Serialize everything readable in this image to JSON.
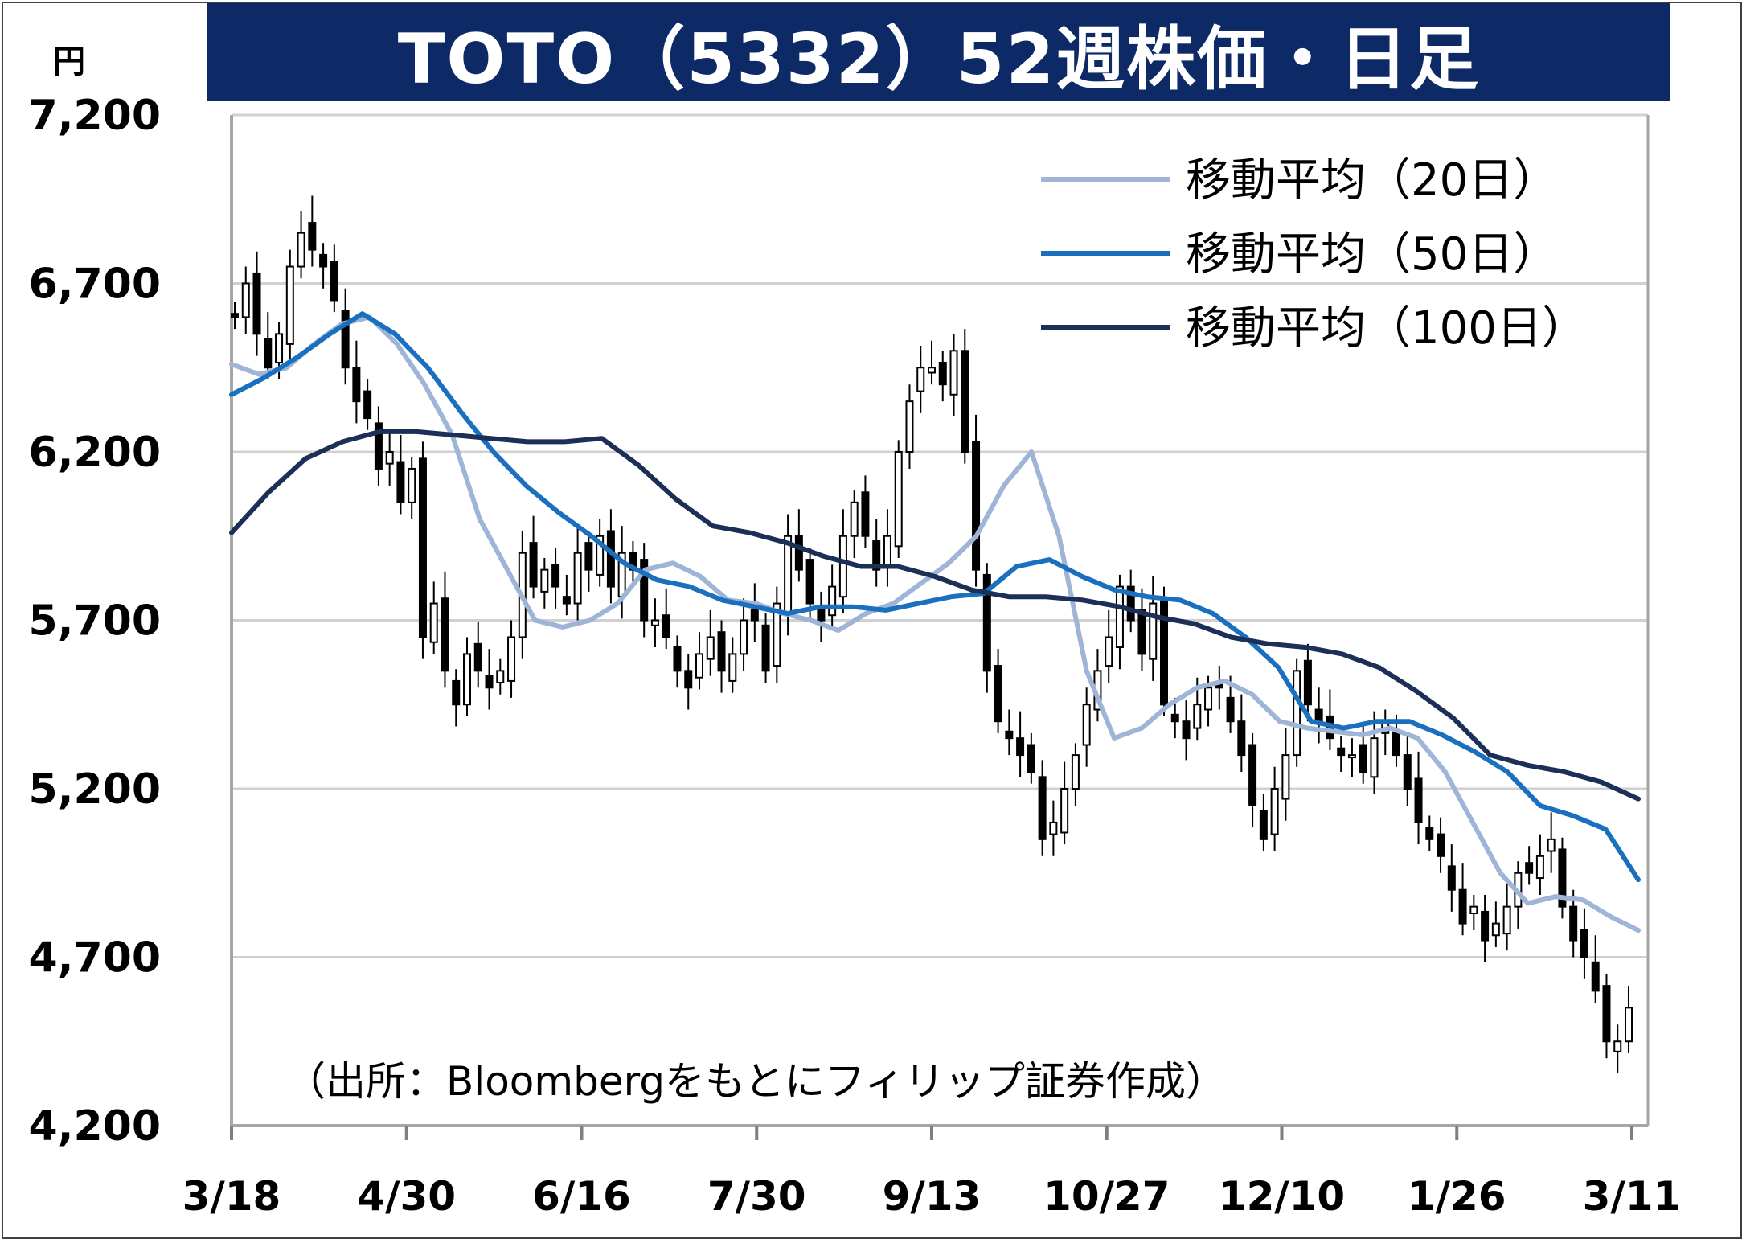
{
  "chart_data": {
    "type": "candlestick",
    "title": "TOTO（5332）52週株価・日足",
    "unit": "円",
    "ylim": [
      4200,
      7200
    ],
    "y_ticks": [
      "7,200",
      "6,700",
      "6,200",
      "5,700",
      "5,200",
      "4,700",
      "4,200"
    ],
    "y_tick_values": [
      7200,
      6700,
      6200,
      5700,
      5200,
      4700,
      4200
    ],
    "x_ticks": [
      "3/18",
      "4/30",
      "6/16",
      "7/30",
      "9/13",
      "10/27",
      "12/10",
      "1/26",
      "3/11"
    ],
    "grid": true,
    "legend_position": "top-right",
    "source_note": "（出所：Bloombergをもとにフィリップ証券作成）",
    "candles_approx_close": [
      6600,
      6700,
      6550,
      6450,
      6550,
      6750,
      6850,
      6800,
      6750,
      6650,
      6450,
      6350,
      6300,
      6150,
      6200,
      6050,
      6150,
      5650,
      5750,
      5550,
      5450,
      5600,
      5550,
      5500,
      5550,
      5650,
      5900,
      5800,
      5850,
      5800,
      5750,
      5900,
      5850,
      5950,
      5800,
      5900,
      5850,
      5700,
      5700,
      5650,
      5550,
      5500,
      5600,
      5650,
      5550,
      5600,
      5700,
      5700,
      5550,
      5750,
      5950,
      5850,
      5750,
      5700,
      5800,
      5950,
      6050,
      5950,
      5850,
      5950,
      6200,
      6350,
      6450,
      6450,
      6400,
      6500,
      6200,
      5850,
      5550,
      5400,
      5350,
      5300,
      5250,
      5050,
      5100,
      5200,
      5300,
      5450,
      5550,
      5650,
      5800,
      5700,
      5600,
      5750,
      5450,
      5400,
      5350,
      5450,
      5500,
      5500,
      5400,
      5300,
      5150,
      5050,
      5200,
      5300,
      5550,
      5450,
      5400,
      5350,
      5300,
      5300,
      5250,
      5350,
      5400,
      5300,
      5200,
      5100,
      5050,
      5000,
      4900,
      4800,
      4850,
      4750,
      4800,
      4850,
      4950,
      4950,
      5000,
      5050,
      4850,
      4750,
      4700,
      4600,
      4450,
      4450,
      4550
    ]
  },
  "series": [
    {
      "name": "移動平均（20日）",
      "color": "#9fb5d8",
      "values": [
        6460,
        6430,
        6450,
        6520,
        6580,
        6600,
        6520,
        6400,
        6250,
        6000,
        5850,
        5700,
        5680,
        5700,
        5750,
        5850,
        5870,
        5830,
        5760,
        5750,
        5720,
        5700,
        5670,
        5720,
        5750,
        5810,
        5870,
        5950,
        6100,
        6200,
        5950,
        5550,
        5350,
        5380,
        5450,
        5500,
        5520,
        5480,
        5400,
        5380,
        5370,
        5360,
        5380,
        5350,
        5250,
        5100,
        4950,
        4860,
        4880,
        4870,
        4820,
        4780
      ]
    },
    {
      "name": "移動平均（50日）",
      "color": "#1a6fbf",
      "values": [
        6370,
        6420,
        6480,
        6550,
        6610,
        6550,
        6450,
        6320,
        6200,
        6100,
        6020,
        5950,
        5870,
        5820,
        5800,
        5760,
        5740,
        5720,
        5740,
        5740,
        5730,
        5750,
        5770,
        5780,
        5860,
        5880,
        5830,
        5790,
        5770,
        5760,
        5720,
        5650,
        5560,
        5400,
        5380,
        5400,
        5400,
        5360,
        5310,
        5250,
        5150,
        5120,
        5080,
        4930
      ]
    },
    {
      "name": "移動平均（100日）",
      "color": "#1b2f57",
      "values": [
        5960,
        6080,
        6180,
        6230,
        6260,
        6260,
        6250,
        6240,
        6230,
        6230,
        6240,
        6160,
        6060,
        5980,
        5960,
        5930,
        5890,
        5860,
        5860,
        5830,
        5790,
        5770,
        5770,
        5760,
        5740,
        5710,
        5690,
        5650,
        5630,
        5620,
        5600,
        5560,
        5490,
        5410,
        5300,
        5270,
        5250,
        5220,
        5170
      ]
    }
  ]
}
